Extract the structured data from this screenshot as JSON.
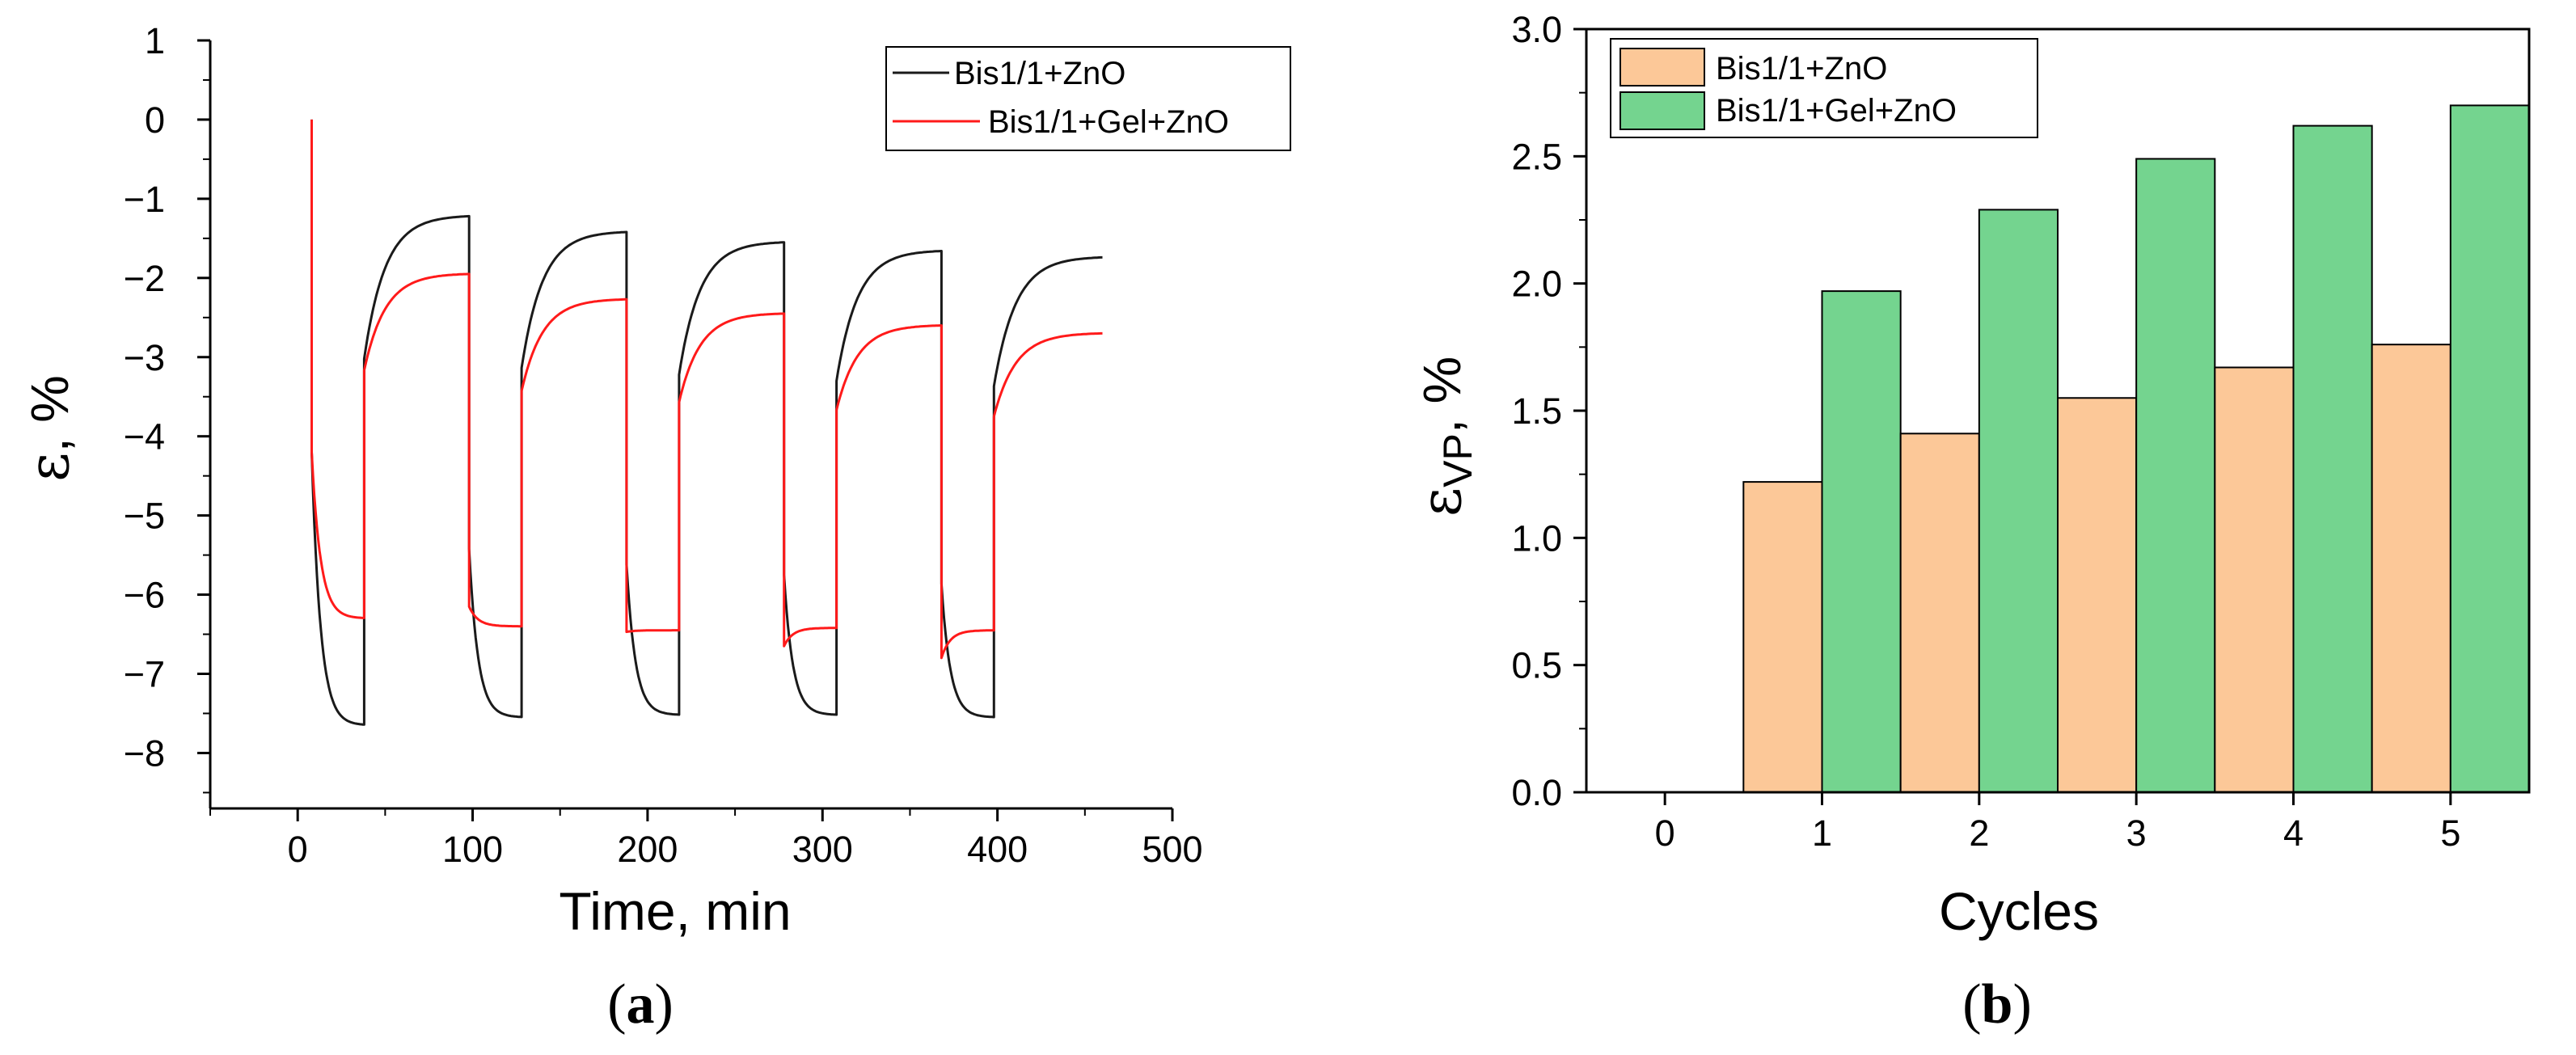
{
  "chart_data": [
    {
      "type": "line",
      "panel_label": "a",
      "title": "",
      "xlabel": "Time, min",
      "ylabel_symbol": "ε",
      "ylabel_unit": ", %",
      "xlim": [
        -50,
        500
      ],
      "ylim": [
        -8.7,
        1
      ],
      "xticks": [
        0,
        100,
        200,
        300,
        400,
        500
      ],
      "xtick_labels": [
        "0",
        "100",
        "200",
        "300",
        "400",
        "500"
      ],
      "yticks": [
        1,
        0,
        -1,
        -2,
        -3,
        -4,
        -5,
        -6,
        -7,
        -8
      ],
      "ytick_labels": [
        "1",
        "0",
        "−1",
        "−2",
        "−3",
        "−4",
        "−5",
        "−6",
        "−7",
        "−8"
      ],
      "grid": false,
      "legend_position": "top-right",
      "loading_start": 8,
      "cycle_period": 90,
      "cycles": 5,
      "series": [
        {
          "name": "Bis1/1+ZnO",
          "color": "#1a1a1a",
          "jump": -4.2,
          "creep_min": [
            -7.65,
            -7.55,
            -7.52,
            -7.52,
            -7.55
          ],
          "recovery_end": [
            -1.22,
            -1.42,
            -1.55,
            -1.66,
            -1.74
          ]
        },
        {
          "name": "Bis1/1+Gel+ZnO",
          "color": "#ff1a1a",
          "jump": -4.2,
          "creep_min": [
            -6.3,
            -6.4,
            -6.45,
            -6.42,
            -6.45
          ],
          "recovery_end": [
            -1.95,
            -2.27,
            -2.45,
            -2.6,
            -2.7
          ]
        }
      ]
    },
    {
      "type": "bar",
      "panel_label": "b",
      "title": "",
      "xlabel": "Cycles",
      "ylabel_symbol": "ε",
      "ylabel_subscript": "VP",
      "ylabel_unit": ", %",
      "categories": [
        "0",
        "1",
        "2",
        "3",
        "4",
        "5"
      ],
      "ylim": [
        0,
        3.0
      ],
      "yticks": [
        0,
        0.5,
        1.0,
        1.5,
        2.0,
        2.5,
        3.0
      ],
      "ytick_labels": [
        "0.0",
        "0.5",
        "1.0",
        "1.5",
        "2.0",
        "2.5",
        "3.0"
      ],
      "grid": false,
      "legend_position": "top-left",
      "series": [
        {
          "name": "Bis1/1+ZnO",
          "color": "#fcc898",
          "values": [
            0,
            1.22,
            1.41,
            1.55,
            1.67,
            1.76
          ]
        },
        {
          "name": "Bis1/1+Gel+ZnO",
          "color": "#74d48f",
          "values": [
            0,
            1.97,
            2.29,
            2.49,
            2.62,
            2.7
          ]
        }
      ]
    }
  ]
}
